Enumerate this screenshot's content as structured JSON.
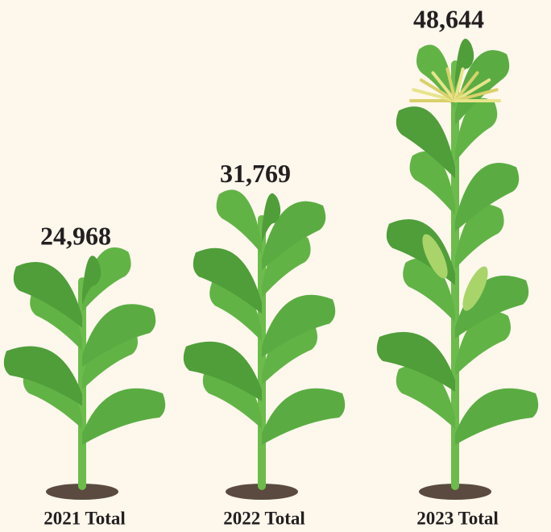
{
  "chart_data": {
    "type": "bar",
    "categories": [
      "2021 Total",
      "2022 Total",
      "2023 Total"
    ],
    "values": [
      24968,
      31769,
      48644
    ],
    "value_labels": [
      "24,968",
      "31,769",
      "48,644"
    ],
    "color": "#5aac42"
  }
}
